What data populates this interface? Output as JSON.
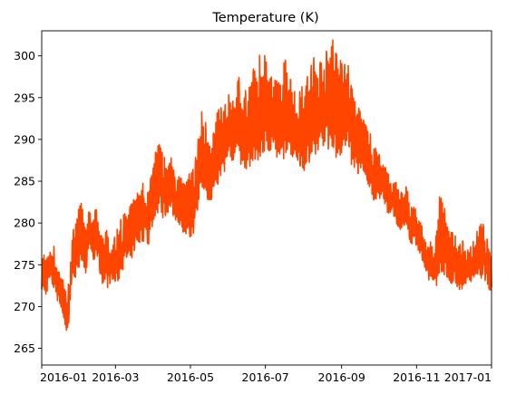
{
  "chart_data": {
    "type": "line",
    "title": "Temperature (K)",
    "xlabel": "",
    "ylabel": "",
    "xlim": [
      "2016-01-01",
      "2017-01-01"
    ],
    "ylim": [
      263,
      303
    ],
    "x_ticks": [
      "2016-01",
      "2016-03",
      "2016-05",
      "2016-07",
      "2016-09",
      "2016-11",
      "2017-01"
    ],
    "y_ticks": [
      265,
      270,
      275,
      280,
      285,
      290,
      295,
      300
    ],
    "grid": false,
    "line_color": "#ff4500",
    "series": [
      {
        "x": [
          "2016-01-01",
          "2016-01-04",
          "2016-01-07",
          "2016-01-10",
          "2016-01-13",
          "2016-01-16",
          "2016-01-19",
          "2016-01-22",
          "2016-01-25",
          "2016-01-28",
          "2016-01-31",
          "2016-02-03",
          "2016-02-06",
          "2016-02-09",
          "2016-02-12",
          "2016-02-15",
          "2016-02-18",
          "2016-02-21",
          "2016-02-24",
          "2016-02-27",
          "2016-03-01",
          "2016-03-04",
          "2016-03-07",
          "2016-03-10",
          "2016-03-13",
          "2016-03-16",
          "2016-03-19",
          "2016-03-22",
          "2016-03-25",
          "2016-03-28",
          "2016-03-31",
          "2016-04-03",
          "2016-04-06",
          "2016-04-09",
          "2016-04-12",
          "2016-04-15",
          "2016-04-18",
          "2016-04-21",
          "2016-04-24",
          "2016-04-27",
          "2016-04-30",
          "2016-05-03",
          "2016-05-06",
          "2016-05-09",
          "2016-05-12",
          "2016-05-15",
          "2016-05-18",
          "2016-05-21",
          "2016-05-24",
          "2016-05-27",
          "2016-05-30",
          "2016-06-02",
          "2016-06-05",
          "2016-06-08",
          "2016-06-11",
          "2016-06-14",
          "2016-06-17",
          "2016-06-20",
          "2016-06-23",
          "2016-06-26",
          "2016-06-29",
          "2016-07-02",
          "2016-07-05",
          "2016-07-08",
          "2016-07-11",
          "2016-07-14",
          "2016-07-17",
          "2016-07-20",
          "2016-07-23",
          "2016-07-26",
          "2016-07-29",
          "2016-08-01",
          "2016-08-04",
          "2016-08-07",
          "2016-08-10",
          "2016-08-13",
          "2016-08-16",
          "2016-08-19",
          "2016-08-22",
          "2016-08-25",
          "2016-08-28",
          "2016-08-31",
          "2016-09-03",
          "2016-09-06",
          "2016-09-09",
          "2016-09-12",
          "2016-09-15",
          "2016-09-18",
          "2016-09-21",
          "2016-09-24",
          "2016-09-27",
          "2016-09-30",
          "2016-10-03",
          "2016-10-06",
          "2016-10-09",
          "2016-10-12",
          "2016-10-15",
          "2016-10-18",
          "2016-10-21",
          "2016-10-24",
          "2016-10-27",
          "2016-10-30",
          "2016-11-02",
          "2016-11-05",
          "2016-11-08",
          "2016-11-11",
          "2016-11-14",
          "2016-11-17",
          "2016-11-20",
          "2016-11-23",
          "2016-11-26",
          "2016-11-29",
          "2016-12-02",
          "2016-12-05",
          "2016-12-08",
          "2016-12-11",
          "2016-12-14",
          "2016-12-17",
          "2016-12-20",
          "2016-12-23",
          "2016-12-26",
          "2016-12-29",
          "2016-12-31"
        ],
        "low": [
          271,
          270,
          272,
          271,
          270,
          269,
          267,
          265,
          271,
          272,
          273,
          274,
          273,
          276,
          274,
          275,
          272,
          271,
          271,
          272,
          271,
          272,
          273,
          274,
          274,
          275,
          276,
          276,
          277,
          276,
          278,
          279,
          280,
          279,
          280,
          280,
          279,
          279,
          278,
          277,
          276,
          277,
          278,
          281,
          282,
          281,
          281,
          282,
          283,
          284,
          285,
          286,
          286,
          287,
          285,
          285,
          284,
          285,
          285,
          285,
          286,
          287,
          286,
          287,
          285,
          285,
          286,
          287,
          286,
          286,
          285,
          284,
          285,
          283,
          286,
          286,
          287,
          287,
          286,
          287,
          285,
          286,
          287,
          288,
          285,
          285,
          284,
          285,
          284,
          283,
          281,
          282,
          282,
          281,
          280,
          281,
          279,
          278,
          278,
          279,
          276,
          277,
          276,
          275,
          273,
          272,
          271,
          271,
          272,
          272,
          272,
          271,
          272,
          271,
          271,
          272,
          272,
          272,
          273,
          272,
          272,
          271,
          271
        ],
        "high": [
          278,
          276,
          277,
          278,
          276,
          275,
          273,
          272,
          277,
          281,
          282,
          283,
          279,
          282,
          281,
          282,
          279,
          280,
          279,
          279,
          279,
          280,
          281,
          282,
          282,
          283,
          284,
          285,
          285,
          284,
          288,
          289,
          290,
          288,
          288,
          288,
          287,
          286,
          286,
          285,
          286,
          287,
          289,
          294,
          293,
          292,
          291,
          292,
          294,
          295,
          294,
          296,
          295,
          297,
          298,
          296,
          297,
          298,
          299,
          300,
          301,
          300,
          299,
          298,
          297,
          298,
          300,
          299,
          297,
          295,
          296,
          297,
          299,
          300,
          301,
          300,
          300,
          301,
          302,
          302,
          301,
          300,
          299,
          300,
          297,
          295,
          294,
          293,
          292,
          291,
          289,
          289,
          288,
          287,
          286,
          285,
          285,
          284,
          284,
          285,
          282,
          283,
          281,
          280,
          278,
          278,
          278,
          280,
          284,
          283,
          280,
          279,
          279,
          278,
          278,
          277,
          277,
          278,
          279,
          280,
          280,
          278,
          276
        ]
      }
    ]
  }
}
